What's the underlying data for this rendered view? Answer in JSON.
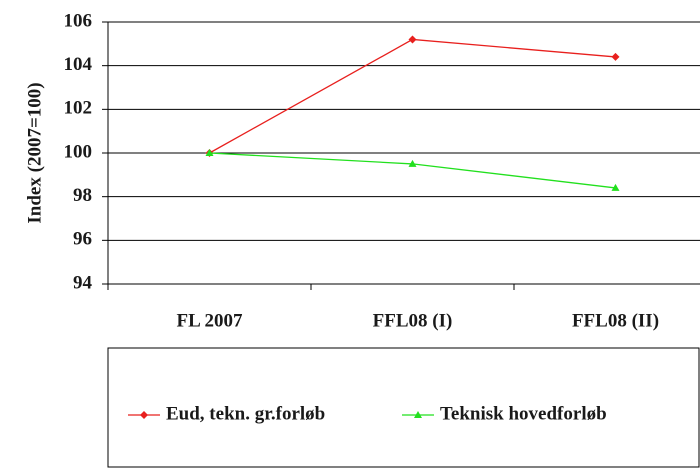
{
  "chart_data": {
    "type": "line",
    "ylabel": "Index (2007=100)",
    "categories": [
      "FL 2007",
      "FFL08 (I)",
      "FFL08 (II)"
    ],
    "series": [
      {
        "name": "Eud, tekn. gr.forløb",
        "color": "#e8201e",
        "marker": "diamond",
        "values": [
          100,
          105.2,
          104.4
        ]
      },
      {
        "name": "Teknisk hovedforløb",
        "color": "#22e01e",
        "marker": "triangle",
        "values": [
          100,
          99.5,
          98.4
        ]
      }
    ],
    "ylim": [
      94,
      106
    ],
    "yticks": [
      94,
      96,
      98,
      100,
      102,
      104,
      106
    ],
    "grid": true,
    "legend": "bottom"
  }
}
